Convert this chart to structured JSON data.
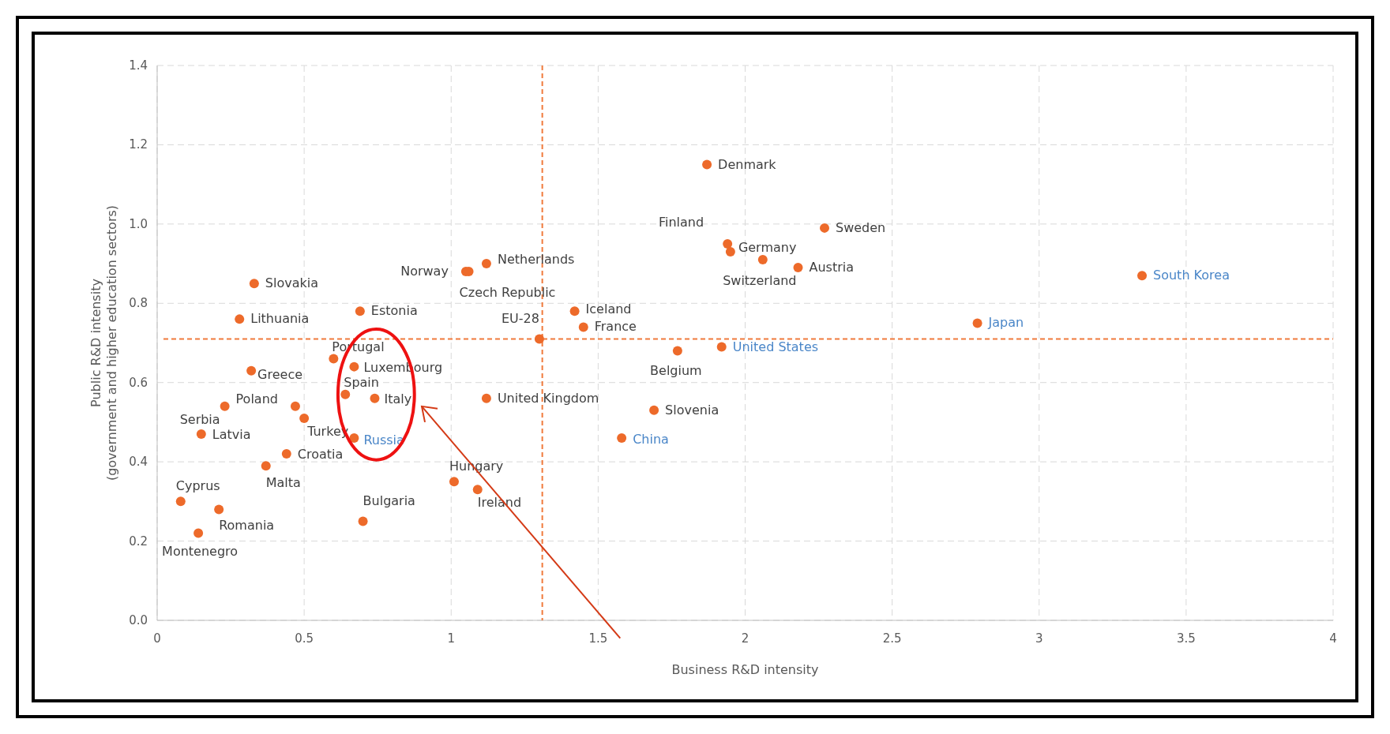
{
  "chart_data": {
    "type": "scatter",
    "xlabel": "Business R&D intensity",
    "ylabel": "Public R&D intensity\n(government and higher education sectors)",
    "xlim": [
      0,
      4
    ],
    "xticks": [
      0,
      0.5,
      1,
      1.5,
      2,
      2.5,
      3,
      3.5,
      4
    ],
    "ylim": [
      0,
      1.4
    ],
    "yticks": [
      {
        "value": 0,
        "label": "0.0"
      },
      {
        "value": 0.2,
        "label": "0.2"
      },
      {
        "value": 0.4,
        "label": "0.4"
      },
      {
        "value": 0.6,
        "label": "0.6"
      },
      {
        "value": 0.8,
        "label": "0.8"
      },
      {
        "value": 1,
        "label": "1.0"
      },
      {
        "value": 1.2,
        "label": "1.2"
      },
      {
        "value": 1.4,
        "label": "1.4"
      }
    ],
    "grid": true,
    "marker": "circle",
    "series": [
      {
        "color": "#ed6a2a",
        "x": [
          1.87,
          2.27,
          1.94,
          1.95,
          2.06,
          2.18,
          3.35,
          1.12,
          1.05,
          1.06,
          0.33,
          0.69,
          0.28,
          1.42,
          1.45,
          2.79,
          1.3,
          1.92,
          1.77,
          0.6,
          0.67,
          0.32,
          0.64,
          0.74,
          1.12,
          0.47,
          0.23,
          0.5,
          1.69,
          0.15,
          0.67,
          1.58,
          0.44,
          0.37,
          1.01,
          1.09,
          0.08,
          0.21,
          0.7,
          0.14
        ],
        "values": [
          1.15,
          0.99,
          0.95,
          0.93,
          0.91,
          0.89,
          0.87,
          0.9,
          0.88,
          0.88,
          0.85,
          0.78,
          0.76,
          0.78,
          0.74,
          0.75,
          0.71,
          0.69,
          0.68,
          0.66,
          0.64,
          0.63,
          0.57,
          0.56,
          0.56,
          0.54,
          0.54,
          0.51,
          0.53,
          0.47,
          0.46,
          0.46,
          0.42,
          0.39,
          0.35,
          0.33,
          0.3,
          0.28,
          0.25,
          0.22
        ]
      }
    ],
    "ref_lines": [
      {
        "axis": "x",
        "value": 1.31,
        "color": "#f07a3c",
        "line_style": "dashed"
      },
      {
        "axis": "y",
        "value": 0.71,
        "color": "#f07a3c",
        "line_style": "dashed"
      }
    ],
    "annotations": [
      {
        "text": "Denmark",
        "x": 1.87,
        "y": 1.15
      },
      {
        "text": "Sweden",
        "x": 2.27,
        "y": 0.99
      },
      {
        "text": "Finland",
        "x": 1.94,
        "y": 0.95
      },
      {
        "text": "Germany",
        "x": 1.95,
        "y": 0.93
      },
      {
        "text": "Switzerland",
        "x": 2.06,
        "y": 0.91
      },
      {
        "text": "Austria",
        "x": 2.18,
        "y": 0.89
      },
      {
        "text": "South Korea",
        "x": 3.35,
        "y": 0.87
      },
      {
        "text": "Netherlands",
        "x": 1.12,
        "y": 0.9
      },
      {
        "text": "Norway",
        "x": 1.05,
        "y": 0.88
      },
      {
        "text": "Czech Republic",
        "x": 1.06,
        "y": 0.88
      },
      {
        "text": "Slovakia",
        "x": 0.33,
        "y": 0.85
      },
      {
        "text": "Estonia",
        "x": 0.69,
        "y": 0.78
      },
      {
        "text": "Lithuania",
        "x": 0.28,
        "y": 0.76
      },
      {
        "text": "Iceland",
        "x": 1.42,
        "y": 0.78
      },
      {
        "text": "France",
        "x": 1.45,
        "y": 0.74
      },
      {
        "text": "Japan",
        "x": 2.79,
        "y": 0.75
      },
      {
        "text": "EU-28",
        "x": 1.3,
        "y": 0.71
      },
      {
        "text": "United States",
        "x": 1.92,
        "y": 0.69
      },
      {
        "text": "Belgium",
        "x": 1.77,
        "y": 0.68
      },
      {
        "text": "Portugal",
        "x": 0.6,
        "y": 0.66
      },
      {
        "text": "Luxembourg",
        "x": 0.67,
        "y": 0.64
      },
      {
        "text": "Greece",
        "x": 0.32,
        "y": 0.63
      },
      {
        "text": "Spain",
        "x": 0.64,
        "y": 0.57
      },
      {
        "text": "Italy",
        "x": 0.74,
        "y": 0.56
      },
      {
        "text": "United Kingdom",
        "x": 1.12,
        "y": 0.56
      },
      {
        "text": "Poland",
        "x": 0.47,
        "y": 0.54
      },
      {
        "text": "Serbia",
        "x": 0.23,
        "y": 0.54
      },
      {
        "text": "Turkey",
        "x": 0.5,
        "y": 0.51
      },
      {
        "text": "Slovenia",
        "x": 1.69,
        "y": 0.53
      },
      {
        "text": "Latvia",
        "x": 0.15,
        "y": 0.47
      },
      {
        "text": "Russia",
        "x": 0.67,
        "y": 0.46
      },
      {
        "text": "China",
        "x": 1.58,
        "y": 0.46
      },
      {
        "text": "Croatia",
        "x": 0.44,
        "y": 0.42
      },
      {
        "text": "Malta",
        "x": 0.37,
        "y": 0.39
      },
      {
        "text": "Hungary",
        "x": 1.01,
        "y": 0.35
      },
      {
        "text": "Ireland",
        "x": 1.09,
        "y": 0.33
      },
      {
        "text": "Cyprus",
        "x": 0.08,
        "y": 0.3
      },
      {
        "text": "Romania",
        "x": 0.21,
        "y": 0.28
      },
      {
        "text": "Bulgaria",
        "x": 0.7,
        "y": 0.25
      },
      {
        "text": "Montenegro",
        "x": 0.14,
        "y": 0.22
      }
    ]
  }
}
